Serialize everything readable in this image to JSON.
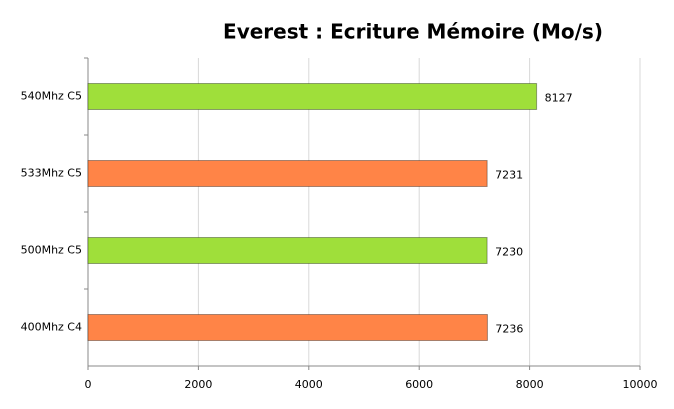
{
  "chart_data": {
    "type": "hbar",
    "title": "Everest : Ecriture Mémoire (Mo/s)",
    "categories": [
      "540Mhz C5",
      "533Mhz C5",
      "500Mhz C5",
      "400Mhz C4"
    ],
    "values": [
      8127,
      7231,
      7230,
      7236
    ],
    "colors": [
      "#9fdf3a",
      "#ff8447",
      "#9fdf3a",
      "#ff8447"
    ],
    "xlim": [
      0,
      10000
    ],
    "xticks": [
      0,
      2000,
      4000,
      6000,
      8000,
      10000
    ],
    "grid": true
  }
}
